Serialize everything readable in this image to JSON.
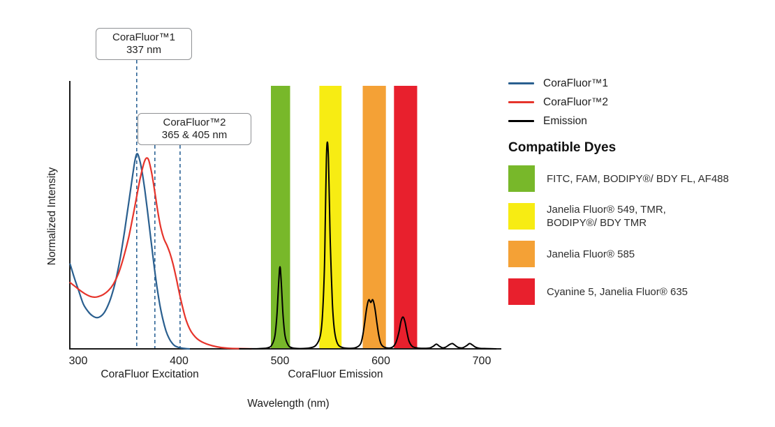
{
  "chart_data": {
    "type": "line",
    "title": "",
    "xlabel": "Wavelength (nm)",
    "ylabel": "Normalized Intensity",
    "x_axis": {
      "min": 292,
      "max": 719,
      "ticks": [
        300,
        400,
        500,
        600,
        700
      ]
    },
    "y_axis": {
      "min": 0,
      "max": 1,
      "ticks": []
    },
    "grid": false,
    "region_labels": [
      {
        "text": "CoraFluor Excitation",
        "center_nm": 371
      },
      {
        "text": "CoraFluor Emission",
        "center_nm": 555
      }
    ],
    "callouts": [
      {
        "line1": "CoraFluor™1",
        "line2": "337 nm",
        "marker_nm": [
          358
        ]
      },
      {
        "line1": "CoraFluor™2",
        "line2": "365 & 405 nm",
        "marker_nm": [
          376,
          401
        ]
      }
    ],
    "marker_color": "#2D6496",
    "bands": [
      {
        "name": "green",
        "color": "#78B82A",
        "from_nm": 491,
        "to_nm": 510
      },
      {
        "name": "yellow",
        "color": "#F7EC13",
        "from_nm": 539,
        "to_nm": 561
      },
      {
        "name": "orange",
        "color": "#F4A136",
        "from_nm": 582,
        "to_nm": 605
      },
      {
        "name": "red",
        "color": "#E8202D",
        "from_nm": 613,
        "to_nm": 636
      }
    ],
    "series": [
      {
        "name": "CoraFluor™1",
        "color": "#2A5F8F",
        "width": 2.2,
        "points": [
          [
            292,
            0.32
          ],
          [
            296,
            0.27
          ],
          [
            300,
            0.225
          ],
          [
            305,
            0.17
          ],
          [
            310,
            0.14
          ],
          [
            314,
            0.125
          ],
          [
            318,
            0.118
          ],
          [
            322,
            0.122
          ],
          [
            326,
            0.138
          ],
          [
            330,
            0.168
          ],
          [
            334,
            0.212
          ],
          [
            338,
            0.272
          ],
          [
            342,
            0.35
          ],
          [
            346,
            0.445
          ],
          [
            350,
            0.55
          ],
          [
            354,
            0.655
          ],
          [
            356,
            0.705
          ],
          [
            358,
            0.735
          ],
          [
            360,
            0.725
          ],
          [
            363,
            0.675
          ],
          [
            366,
            0.6
          ],
          [
            369,
            0.51
          ],
          [
            372,
            0.415
          ],
          [
            375,
            0.32
          ],
          [
            378,
            0.235
          ],
          [
            381,
            0.165
          ],
          [
            384,
            0.11
          ],
          [
            387,
            0.068
          ],
          [
            390,
            0.04
          ],
          [
            393,
            0.022
          ],
          [
            396,
            0.011
          ],
          [
            400,
            0.005
          ],
          [
            404,
            0.002
          ],
          [
            410,
            0
          ]
        ]
      },
      {
        "name": "CoraFluor™2",
        "color": "#E6342B",
        "width": 2.2,
        "points": [
          [
            292,
            0.25
          ],
          [
            297,
            0.235
          ],
          [
            302,
            0.22
          ],
          [
            307,
            0.207
          ],
          [
            312,
            0.198
          ],
          [
            316,
            0.195
          ],
          [
            320,
            0.197
          ],
          [
            325,
            0.205
          ],
          [
            330,
            0.22
          ],
          [
            335,
            0.245
          ],
          [
            340,
            0.285
          ],
          [
            345,
            0.345
          ],
          [
            350,
            0.42
          ],
          [
            354,
            0.495
          ],
          [
            358,
            0.575
          ],
          [
            361,
            0.635
          ],
          [
            364,
            0.685
          ],
          [
            366,
            0.71
          ],
          [
            368,
            0.72
          ],
          [
            370,
            0.71
          ],
          [
            373,
            0.66
          ],
          [
            376,
            0.59
          ],
          [
            379,
            0.515
          ],
          [
            382,
            0.455
          ],
          [
            385,
            0.415
          ],
          [
            388,
            0.39
          ],
          [
            391,
            0.36
          ],
          [
            394,
            0.32
          ],
          [
            397,
            0.27
          ],
          [
            400,
            0.215
          ],
          [
            403,
            0.165
          ],
          [
            406,
            0.12
          ],
          [
            409,
            0.088
          ],
          [
            412,
            0.065
          ],
          [
            416,
            0.045
          ],
          [
            420,
            0.032
          ],
          [
            425,
            0.022
          ],
          [
            430,
            0.015
          ],
          [
            436,
            0.009
          ],
          [
            442,
            0.005
          ],
          [
            450,
            0.002
          ],
          [
            460,
            0.001
          ],
          [
            472,
            0
          ]
        ]
      },
      {
        "name": "Emission",
        "color": "#000000",
        "width": 2,
        "points": [
          [
            460,
            0
          ],
          [
            470,
            0
          ],
          [
            480,
            0.001
          ],
          [
            488,
            0.004
          ],
          [
            492,
            0.015
          ],
          [
            495,
            0.05
          ],
          [
            497,
            0.13
          ],
          [
            499,
            0.27
          ],
          [
            500,
            0.31
          ],
          [
            501,
            0.27
          ],
          [
            503,
            0.13
          ],
          [
            505,
            0.05
          ],
          [
            508,
            0.015
          ],
          [
            512,
            0.004
          ],
          [
            520,
            0.001
          ],
          [
            530,
            0.004
          ],
          [
            536,
            0.015
          ],
          [
            540,
            0.05
          ],
          [
            542,
            0.12
          ],
          [
            544,
            0.3
          ],
          [
            545,
            0.5
          ],
          [
            546,
            0.72
          ],
          [
            547,
            0.78
          ],
          [
            548,
            0.72
          ],
          [
            549,
            0.55
          ],
          [
            550,
            0.38
          ],
          [
            552,
            0.17
          ],
          [
            554,
            0.07
          ],
          [
            557,
            0.02
          ],
          [
            562,
            0.005
          ],
          [
            570,
            0.002
          ],
          [
            576,
            0.006
          ],
          [
            580,
            0.02
          ],
          [
            582,
            0.05
          ],
          [
            584,
            0.1
          ],
          [
            586,
            0.155
          ],
          [
            588,
            0.185
          ],
          [
            590,
            0.175
          ],
          [
            592,
            0.185
          ],
          [
            594,
            0.155
          ],
          [
            596,
            0.1
          ],
          [
            598,
            0.05
          ],
          [
            600,
            0.02
          ],
          [
            603,
            0.007
          ],
          [
            608,
            0.003
          ],
          [
            612,
            0.008
          ],
          [
            615,
            0.025
          ],
          [
            618,
            0.065
          ],
          [
            620,
            0.105
          ],
          [
            622,
            0.12
          ],
          [
            624,
            0.1
          ],
          [
            626,
            0.06
          ],
          [
            628,
            0.028
          ],
          [
            631,
            0.01
          ],
          [
            635,
            0.004
          ],
          [
            640,
            0.002
          ],
          [
            648,
            0.003
          ],
          [
            652,
            0.01
          ],
          [
            655,
            0.018
          ],
          [
            658,
            0.01
          ],
          [
            661,
            0.004
          ],
          [
            664,
            0.006
          ],
          [
            668,
            0.016
          ],
          [
            671,
            0.02
          ],
          [
            674,
            0.012
          ],
          [
            677,
            0.005
          ],
          [
            681,
            0.004
          ],
          [
            685,
            0.012
          ],
          [
            688,
            0.02
          ],
          [
            691,
            0.014
          ],
          [
            694,
            0.006
          ],
          [
            698,
            0.002
          ],
          [
            705,
            0.001
          ],
          [
            714,
            0
          ]
        ]
      }
    ]
  },
  "legend": {
    "items": [
      {
        "label": "CoraFluor™1",
        "color": "#2A5F8F"
      },
      {
        "label": "CoraFluor™2",
        "color": "#E6342B"
      },
      {
        "label": "Emission",
        "color": "#000000"
      }
    ]
  },
  "dyes": {
    "heading": "Compatible Dyes",
    "items": [
      {
        "color": "#78B82A",
        "lines": [
          "FITC, FAM, BODIPY®/ BDY FL, AF488"
        ]
      },
      {
        "color": "#F7EC13",
        "lines": [
          "Janelia Fluor® 549, TMR,",
          "BODIPY®/ BDY TMR"
        ]
      },
      {
        "color": "#F4A136",
        "lines": [
          "Janelia Fluor® 585"
        ]
      },
      {
        "color": "#E8202D",
        "lines": [
          "Cyanine 5, Janelia Fluor® 635"
        ]
      }
    ]
  }
}
